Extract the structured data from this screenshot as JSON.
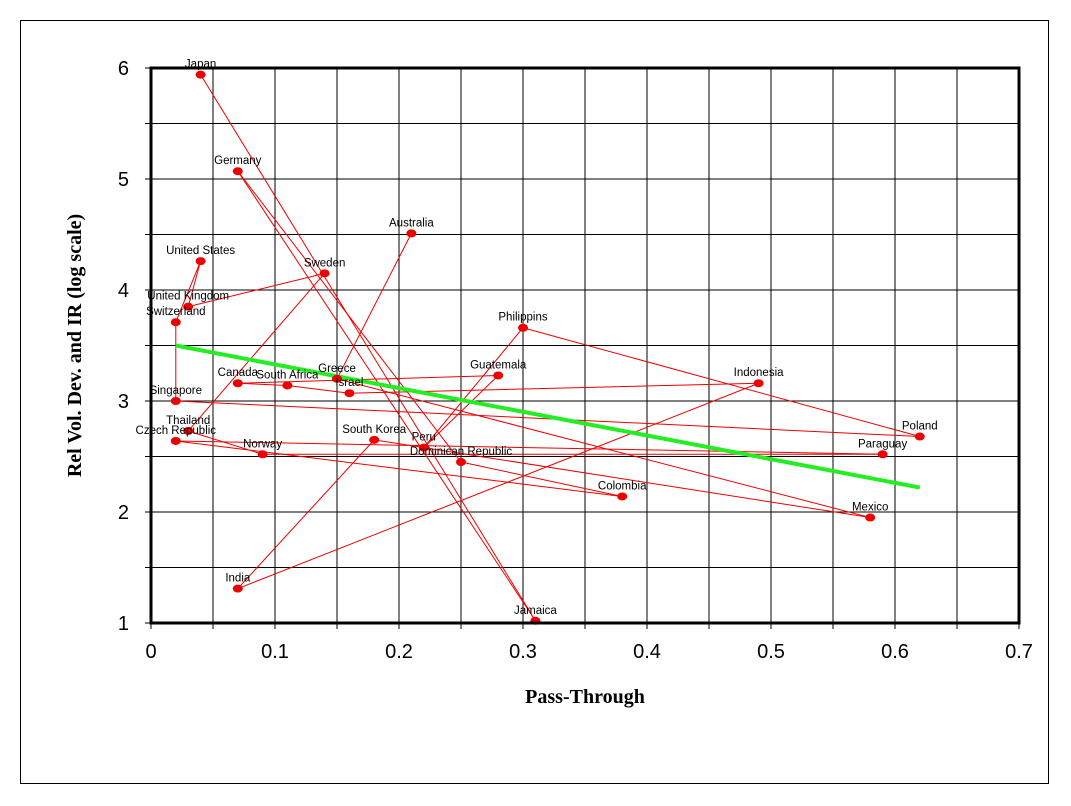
{
  "chart_data": {
    "type": "scatter",
    "xlabel": "Pass-Through",
    "ylabel": "Rel Vol. Dev. and IR (log scale)",
    "xlim": [
      0,
      0.7
    ],
    "ylim": [
      1,
      6
    ],
    "x_ticks": [
      "0",
      "0.1",
      "0.2",
      "0.3",
      "0.4",
      "0.5",
      "0.6",
      "0.7"
    ],
    "y_ticks": [
      "1",
      "2",
      "3",
      "4",
      "5",
      "6"
    ],
    "grid": true,
    "points": [
      {
        "label": "Japan",
        "x": 0.04,
        "y": 5.94
      },
      {
        "label": "Jamaica",
        "x": 0.31,
        "y": 1.02
      },
      {
        "label": "Germany",
        "x": 0.07,
        "y": 5.07
      },
      {
        "label": "Dominican Republic",
        "x": 0.25,
        "y": 2.45
      },
      {
        "label": "Colombia",
        "x": 0.38,
        "y": 2.14
      },
      {
        "label": "Czech Republic",
        "x": 0.02,
        "y": 2.64
      },
      {
        "label": "Paraguay",
        "x": 0.59,
        "y": 2.52
      },
      {
        "label": "Norway",
        "x": 0.09,
        "y": 2.52
      },
      {
        "label": "Thailand",
        "x": 0.03,
        "y": 2.73
      },
      {
        "label": "Sweden",
        "x": 0.14,
        "y": 4.15
      },
      {
        "label": "United Kingdom",
        "x": 0.03,
        "y": 3.85
      },
      {
        "label": "United States",
        "x": 0.04,
        "y": 4.26
      },
      {
        "label": "Switzerland",
        "x": 0.02,
        "y": 3.71
      },
      {
        "label": "Singapore",
        "x": 0.02,
        "y": 3.0
      },
      {
        "label": "Poland",
        "x": 0.62,
        "y": 2.68
      },
      {
        "label": "Philippins",
        "x": 0.3,
        "y": 3.66
      },
      {
        "label": "Peru",
        "x": 0.22,
        "y": 2.58
      },
      {
        "label": "Guatemala",
        "x": 0.28,
        "y": 3.23
      },
      {
        "label": "Canada",
        "x": 0.07,
        "y": 3.16
      },
      {
        "label": "South Africa",
        "x": 0.11,
        "y": 3.14
      },
      {
        "label": "Israel",
        "x": 0.16,
        "y": 3.07
      },
      {
        "label": "Indonesia",
        "x": 0.49,
        "y": 3.16
      },
      {
        "label": "India",
        "x": 0.07,
        "y": 1.31
      },
      {
        "label": "South Korea",
        "x": 0.18,
        "y": 2.65
      },
      {
        "label": "Mexico",
        "x": 0.58,
        "y": 1.95
      },
      {
        "label": "Greece",
        "x": 0.15,
        "y": 3.2
      },
      {
        "label": "Australia",
        "x": 0.21,
        "y": 4.51
      }
    ],
    "trendline": {
      "x": [
        0.02,
        0.62
      ],
      "y": [
        3.5,
        2.22
      ],
      "color": "#22ee22"
    },
    "point_color": "#ee0000",
    "connector_color": "#ee0000"
  }
}
